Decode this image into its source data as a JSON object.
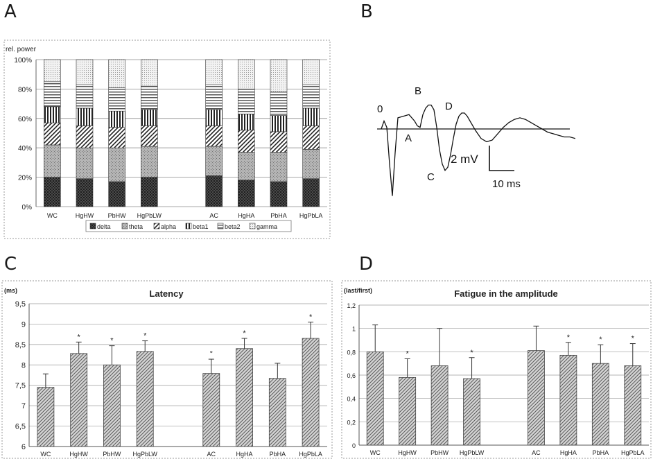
{
  "panels": {
    "a": {
      "letter": "A"
    },
    "b": {
      "letter": "B"
    },
    "c": {
      "letter": "C"
    },
    "d": {
      "letter": "D"
    }
  },
  "colors": {
    "delta": "#3a3a3a",
    "theta": "#9a9a9a",
    "alpha": "#ffffff",
    "beta1": "#555555",
    "beta2": "#dddddd",
    "gamma": "#eeeeee",
    "grid": "#b0b0b0",
    "bar_fill": "#c8c8c8"
  },
  "chart_data": [
    {
      "id": "A",
      "type": "bar",
      "stacked": true,
      "ylabel": "rel. power",
      "categories": [
        "WC",
        "HgHW",
        "PbHW",
        "HgPbLW",
        "",
        "AC",
        "HgHA",
        "PbHA",
        "HgPbLA"
      ],
      "yticks": [
        "0%",
        "20%",
        "40%",
        "60%",
        "80%",
        "100%"
      ],
      "ylim": [
        0,
        100
      ],
      "legend": [
        "delta",
        "theta",
        "alpha",
        "beta1",
        "beta2",
        "gamma"
      ],
      "legend_position": "bottom",
      "series": [
        {
          "name": "delta",
          "values": [
            20,
            19,
            17,
            20,
            null,
            21,
            18,
            17,
            19
          ]
        },
        {
          "name": "theta",
          "values": [
            22,
            21,
            23,
            21,
            null,
            20,
            19,
            20,
            20
          ]
        },
        {
          "name": "alpha",
          "values": [
            15,
            15,
            14,
            14,
            null,
            14,
            15,
            14,
            16
          ]
        },
        {
          "name": "beta1",
          "values": [
            11,
            12,
            11,
            11,
            null,
            11,
            11,
            11,
            12
          ]
        },
        {
          "name": "beta2",
          "values": [
            17,
            16,
            16,
            16,
            null,
            17,
            17,
            16,
            16
          ]
        },
        {
          "name": "gamma",
          "values": [
            15,
            17,
            19,
            18,
            null,
            17,
            20,
            22,
            17
          ]
        }
      ]
    },
    {
      "id": "B",
      "type": "line",
      "waveform_labels": [
        "0",
        "A",
        "B",
        "C",
        "D"
      ],
      "scale_y": "2 mV",
      "scale_x": "10 ms",
      "x": [
        0,
        1,
        2,
        3,
        4,
        5,
        6,
        8,
        10,
        12,
        13,
        14,
        15,
        16,
        17,
        18,
        19,
        20,
        21,
        22,
        23,
        24,
        25,
        26,
        27,
        28,
        29,
        30,
        31,
        32,
        34,
        36,
        38,
        40,
        42,
        44,
        46,
        48,
        50,
        52,
        54,
        56,
        58,
        60,
        62,
        64,
        66,
        68,
        70
      ],
      "y": [
        0,
        0.5,
        0.1,
        -2.2,
        -4.2,
        -1.5,
        0.7,
        0.8,
        0.9,
        0.5,
        0.2,
        0.1,
        0.9,
        1.3,
        1.5,
        1.5,
        1.2,
        0.1,
        -1.3,
        -2.2,
        -2.6,
        -2.4,
        -1.6,
        -0.6,
        0.3,
        0.8,
        1.0,
        1.0,
        0.8,
        0.5,
        -0.1,
        -0.6,
        -0.8,
        -0.7,
        -0.3,
        0.1,
        0.4,
        0.6,
        0.7,
        0.6,
        0.4,
        0.2,
        0.0,
        -0.2,
        -0.3,
        -0.4,
        -0.5,
        -0.5,
        -0.6
      ]
    },
    {
      "id": "C",
      "type": "bar",
      "title": "Latency",
      "ylabel": "(ms)",
      "categories": [
        "WC",
        "HgHW",
        "PbHW",
        "HgPbLW",
        "",
        "AC",
        "HgHA",
        "PbHA",
        "HgPbLA"
      ],
      "yticks": [
        "6",
        "6,5",
        "7",
        "7,5",
        "8",
        "8,5",
        "9",
        "9,5"
      ],
      "ylim": [
        6,
        9.5
      ],
      "values": [
        7.45,
        8.28,
        8.0,
        8.33,
        null,
        7.79,
        8.4,
        7.67,
        8.65
      ],
      "errors": [
        0.33,
        0.28,
        0.47,
        0.26,
        null,
        0.35,
        0.25,
        0.37,
        0.4
      ],
      "markers": [
        "",
        "*",
        "*",
        "*",
        "",
        "°",
        "*",
        "",
        "*"
      ]
    },
    {
      "id": "D",
      "type": "bar",
      "title": "Fatigue in the amplitude",
      "ylabel": "(last/first)",
      "categories": [
        "WC",
        "HgHW",
        "PbHW",
        "HgPbLW",
        "",
        "AC",
        "HgHA",
        "PbHA",
        "HgPbLA"
      ],
      "yticks": [
        "0",
        "0,2",
        "0,4",
        "0,6",
        "0,8",
        "1",
        "1,2"
      ],
      "ylim": [
        0,
        1.2
      ],
      "values": [
        0.8,
        0.58,
        0.68,
        0.57,
        null,
        0.81,
        0.77,
        0.7,
        0.68
      ],
      "errors": [
        0.23,
        0.16,
        0.32,
        0.18,
        null,
        0.21,
        0.11,
        0.16,
        0.19
      ],
      "markers": [
        "",
        "*",
        "",
        "*",
        "",
        "",
        "*",
        "*",
        "*"
      ]
    }
  ]
}
